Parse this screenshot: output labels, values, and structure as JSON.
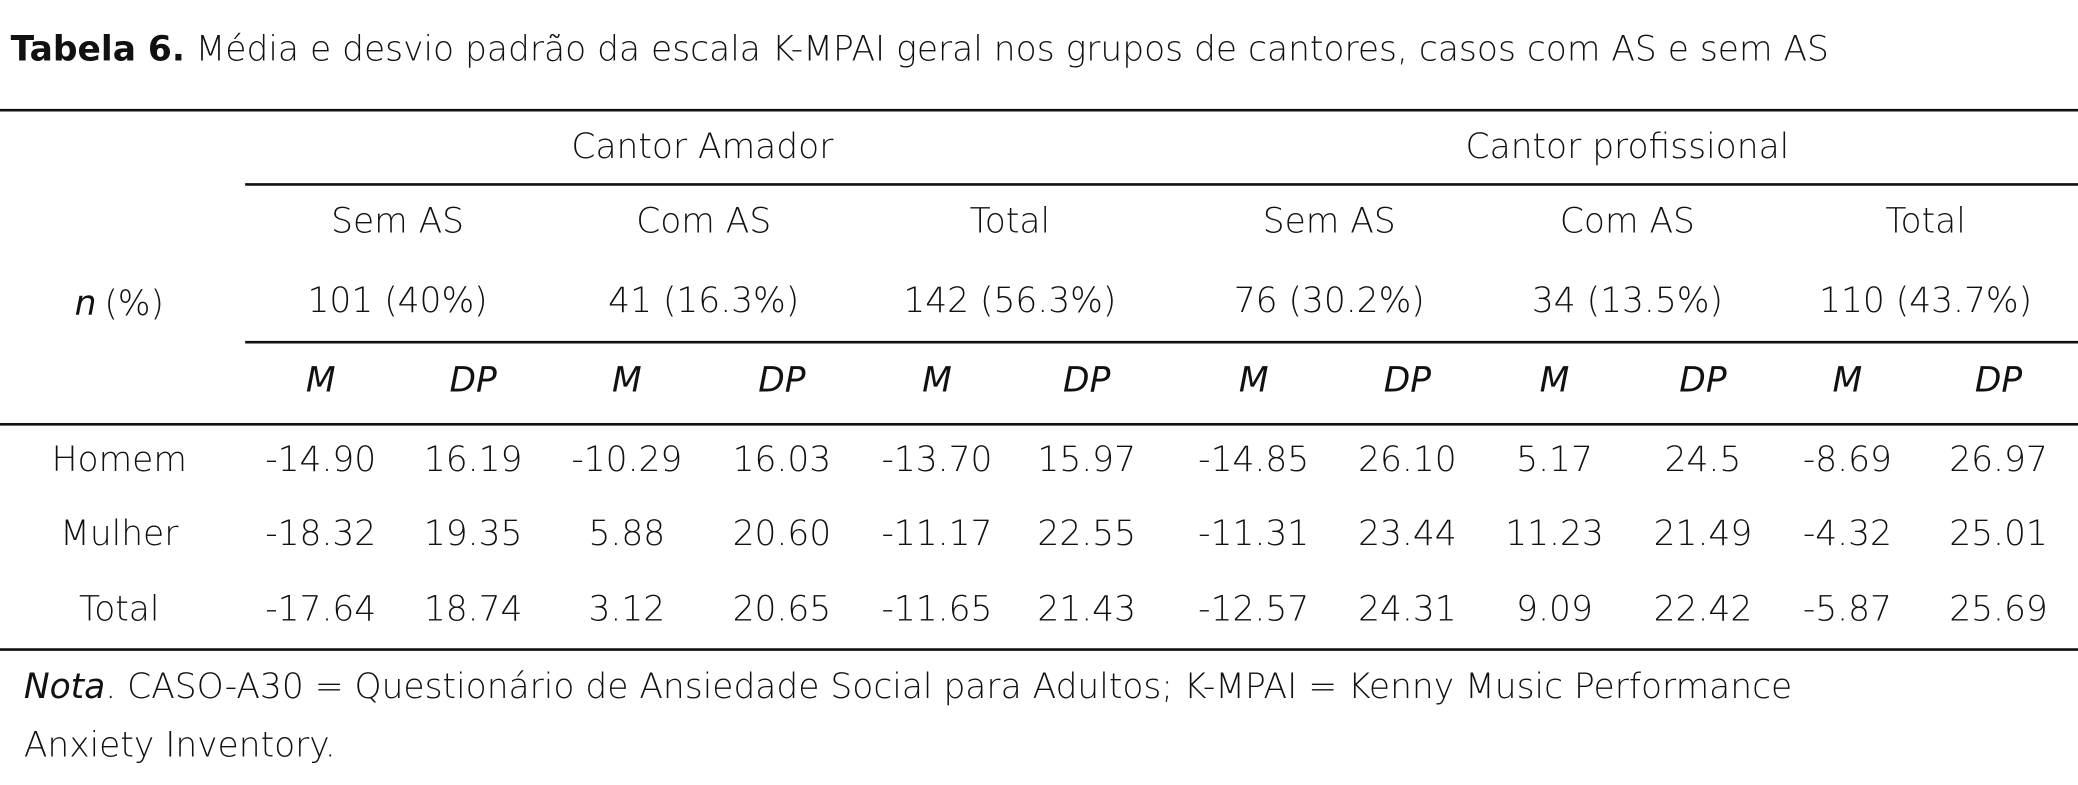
{
  "caption": {
    "label": "Tabela 6.",
    "text": "Média e desvio padrão da escala K-MPAI geral nos grupos de cantores, casos com AS e sem AS"
  },
  "table": {
    "groups": [
      "Cantor Amador",
      "Cantor profissional"
    ],
    "subgroups": [
      "Sem AS",
      "Com AS",
      "Total",
      "Sem AS",
      "Com AS",
      "Total"
    ],
    "n_label": {
      "symbol": "n",
      "unit": "(%)"
    },
    "n_values": [
      "101 (40%)",
      "41 (16.3%)",
      "142 (56.3%)",
      "76 (30.2%)",
      "34 (13.5%)",
      "110 (43.7%)"
    ],
    "stat_headers": [
      "M",
      "DP",
      "M",
      "DP",
      "M",
      "DP",
      "M",
      "DP",
      "M",
      "DP",
      "M",
      "DP"
    ],
    "rows": [
      {
        "label": "Homem",
        "values": [
          "-14.90",
          "16.19",
          "-10.29",
          "16.03",
          "-13.70",
          "15.97",
          "-14.85",
          "26.10",
          "5.17",
          "24.5",
          "-8.69",
          "26.97"
        ]
      },
      {
        "label": "Mulher",
        "values": [
          "-18.32",
          "19.35",
          "5.88",
          "20.60",
          "-11.17",
          "22.55",
          "-11.31",
          "23.44",
          "11.23",
          "21.49",
          "-4.32",
          "25.01"
        ]
      },
      {
        "label": "Total",
        "values": [
          "-17.64",
          "18.74",
          "3.12",
          "20.65",
          "-11.65",
          "21.43",
          "-12.57",
          "24.31",
          "9.09",
          "22.42",
          "-5.87",
          "25.69"
        ]
      }
    ]
  },
  "note": {
    "label": "Nota",
    "lines": [
      ". CASO-A30 = Questionário de Ansiedade Social para Adultos; K-MPAI = Kenny Music Performance",
      "Anxiety Inventory."
    ]
  }
}
